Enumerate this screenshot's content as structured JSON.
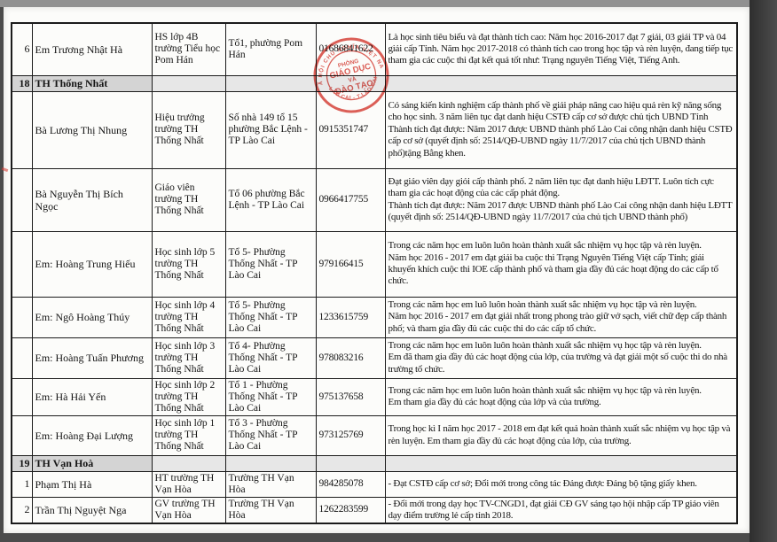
{
  "colors": {
    "stamp_red": "#d8443c",
    "section_gray": "#d4d4d4"
  },
  "stamp": {
    "arc_top": "XÃ HỘI CHỦ NGHĨA VIỆT NAM",
    "arc_bottom": "LÀO CAI - T.LÀO CAI",
    "line1": "PHÒNG",
    "line2": "GIÁO DỤC",
    "line3": "VÀ",
    "line4": "ĐÀO TẠO"
  },
  "table": {
    "rows": [
      {
        "type": "entry",
        "no": "6",
        "name": "Em Trương Nhật Hà",
        "position": "HS lớp 4B trường Tiểu học Pom Hán",
        "address": "Tổ1, phường Pom Hán",
        "phone": "01686841622",
        "description": "Là học sinh tiêu biểu và đạt thành tích cao: Năm học 2016-2017 đạt 7 giải, 03 giải TP và 04 giải cấp Tỉnh. Năm học 2017-2018 có thành tích cao trong học tập và rèn luyện, đang tiếp tục tham gia các cuộc thi đạt kết quả tốt như: Trạng nguyên Tiếng Việt, Tiếng Anh."
      },
      {
        "type": "section",
        "no": "18",
        "name": "TH Thống Nhất",
        "position": "",
        "address": "",
        "phone": "",
        "description": ""
      },
      {
        "type": "entry",
        "no": "",
        "name": "Bà Lương Thị Nhung",
        "position": "Hiệu trưởng trường TH Thống Nhất",
        "address": "Số nhà 149 tổ 15 phường Bắc Lệnh - TP Lào Cai",
        "phone": "0915351747",
        "description": "Có sáng kiến kinh nghiệm cấp thành phố về giải pháp nâng cao hiệu quả rèn kỹ năng sống cho học sinh. 3 năm liên tục đạt danh hiệu CSTĐ cấp cơ sở được chủ tịch UBND Tỉnh\nThành tích đạt được: Năm 2017 được UBND thành phố Lào Cai công nhận danh hiệu CSTĐ cấp cơ sở (quyết định số: 2514/QĐ-UBND ngày 11/7/2017 của chủ tịch UBND thành phố)tặng Bằng khen."
      },
      {
        "type": "entry",
        "no": "",
        "name": "Bà Nguyễn Thị Bích Ngọc",
        "position": "Giáo viên trường TH Thống Nhất",
        "address": "Tổ 06 phường Bắc Lệnh - TP Lào Cai",
        "phone": "0966417755",
        "description": "Đạt giáo viên dạy giỏi cấp thành phố. 2 năm liên tục đạt danh hiệu LĐTT. Luôn tích cực tham gia các hoạt động của các cấp phát động.\nThành tích đạt được: Năm 2017 được UBND thành phố Lào Cai công nhận danh hiệu LĐTT (quyết định số: 2514/QĐ-UBND ngày 11/7/2017 của chủ tịch UBND thành phố)"
      },
      {
        "type": "entry",
        "no": "",
        "name": "Em: Hoàng Trung Hiếu",
        "position": "Học sinh lớp 5 trường TH Thống Nhất",
        "address": "Tổ 5- Phường Thống Nhất - TP Lào Cai",
        "phone": "979166415",
        "description": "Trong các năm học em luôn luôn hoàn thành xuất sắc nhiệm vụ học tập và rèn luyện.\nNăm học 2016 - 2017 em đạt giải ba cuộc thi Trạng Nguyên Tiếng Việt cấp Tỉnh; giải khuyến khích cuộc thi IOE cấp thành phố và tham gia đầy đủ các hoạt động do các cấp tổ chức."
      },
      {
        "type": "entry",
        "no": "",
        "name": "Em: Ngô Hoàng Thúy",
        "position": "Học sinh lớp 4 trường TH Thống Nhất",
        "address": "Tổ 5- Phường Thống Nhất - TP Lào Cai",
        "phone": "1233615759",
        "description": "Trong các năm học em luô luôn hoàn thành xuất sắc nhiệm vụ học tập và rèn luyện.\nNăm học 2016 - 2017 em đạt giải nhất trong phong trào giữ vở sạch, viết chữ đẹp cấp thành phố; và tham gia đầy đủ các cuộc thi do các cấp tổ chức."
      },
      {
        "type": "entry",
        "no": "",
        "name": "Em: Hoàng Tuấn Phương",
        "position": "Học sinh lớp 3 trường TH Thống Nhất",
        "address": "Tổ 4- Phường Thống Nhất - TP Lào Cai",
        "phone": "978083216",
        "description": "Trong các năm học em luôn luôn hoàn thành xuất sắc nhiệm vụ học tập và rèn luyện.\nEm đã tham gia đầy đủ các hoạt động của lớp, của trường và đạt giải một số cuộc thi do nhà trường tổ chức."
      },
      {
        "type": "entry",
        "no": "",
        "name": "Em: Hà Hải Yến",
        "position": "Học sinh lớp 2 trường TH Thống Nhất",
        "address": "Tổ 1 - Phường Thống Nhất - TP Lào Cai",
        "phone": "975137658",
        "description": "Trong các năm học em luôn luôn hoàn thành xuất sắc nhiệm vụ học tập và rèn luyện.\nEm tham gia đầy đủ các hoạt động của lớp và của trường."
      },
      {
        "type": "entry",
        "no": "",
        "name": "Em: Hoàng Đại Lượng",
        "position": "Học sinh lớp 1 trường TH Thống Nhất",
        "address": "Tổ 3 - Phường Thống Nhất - TP Lào Cai",
        "phone": "973125769",
        "description": "Trong học kì I năm học 2017 - 2018 em đạt kết quả hoàn thành xuất sắc nhiệm vụ học tập và rèn luyện. Em tham gia đầy đủ các hoạt động của lớp, của trường."
      },
      {
        "type": "section",
        "no": "19",
        "name": "TH Vạn Hoà",
        "position": "",
        "address": "",
        "phone": "",
        "description": ""
      },
      {
        "type": "entry",
        "no": "1",
        "name": "Phạm Thị Hà",
        "position": "HT trường TH Vạn Hòa",
        "address": "Trường TH Vạn Hòa",
        "phone": "984285078",
        "description": "- Đạt CSTĐ cấp cơ sở; Đổi mới trong công tác Đảng được Đảng bộ tặng giấy khen."
      },
      {
        "type": "entry",
        "no": "2",
        "name": "Trần Thị Nguyệt Nga",
        "position": "GV trường TH Vạn Hòa",
        "address": "Trường TH Vạn Hòa",
        "phone": "1262283599",
        "description": "- Đổi mới trong dạy học TV-CNGD1, đạt giải CĐ GV sáng tạo hội nhập cấp TP giáo viên dạy điểm trường lẻ cấp tỉnh 2018."
      }
    ]
  }
}
